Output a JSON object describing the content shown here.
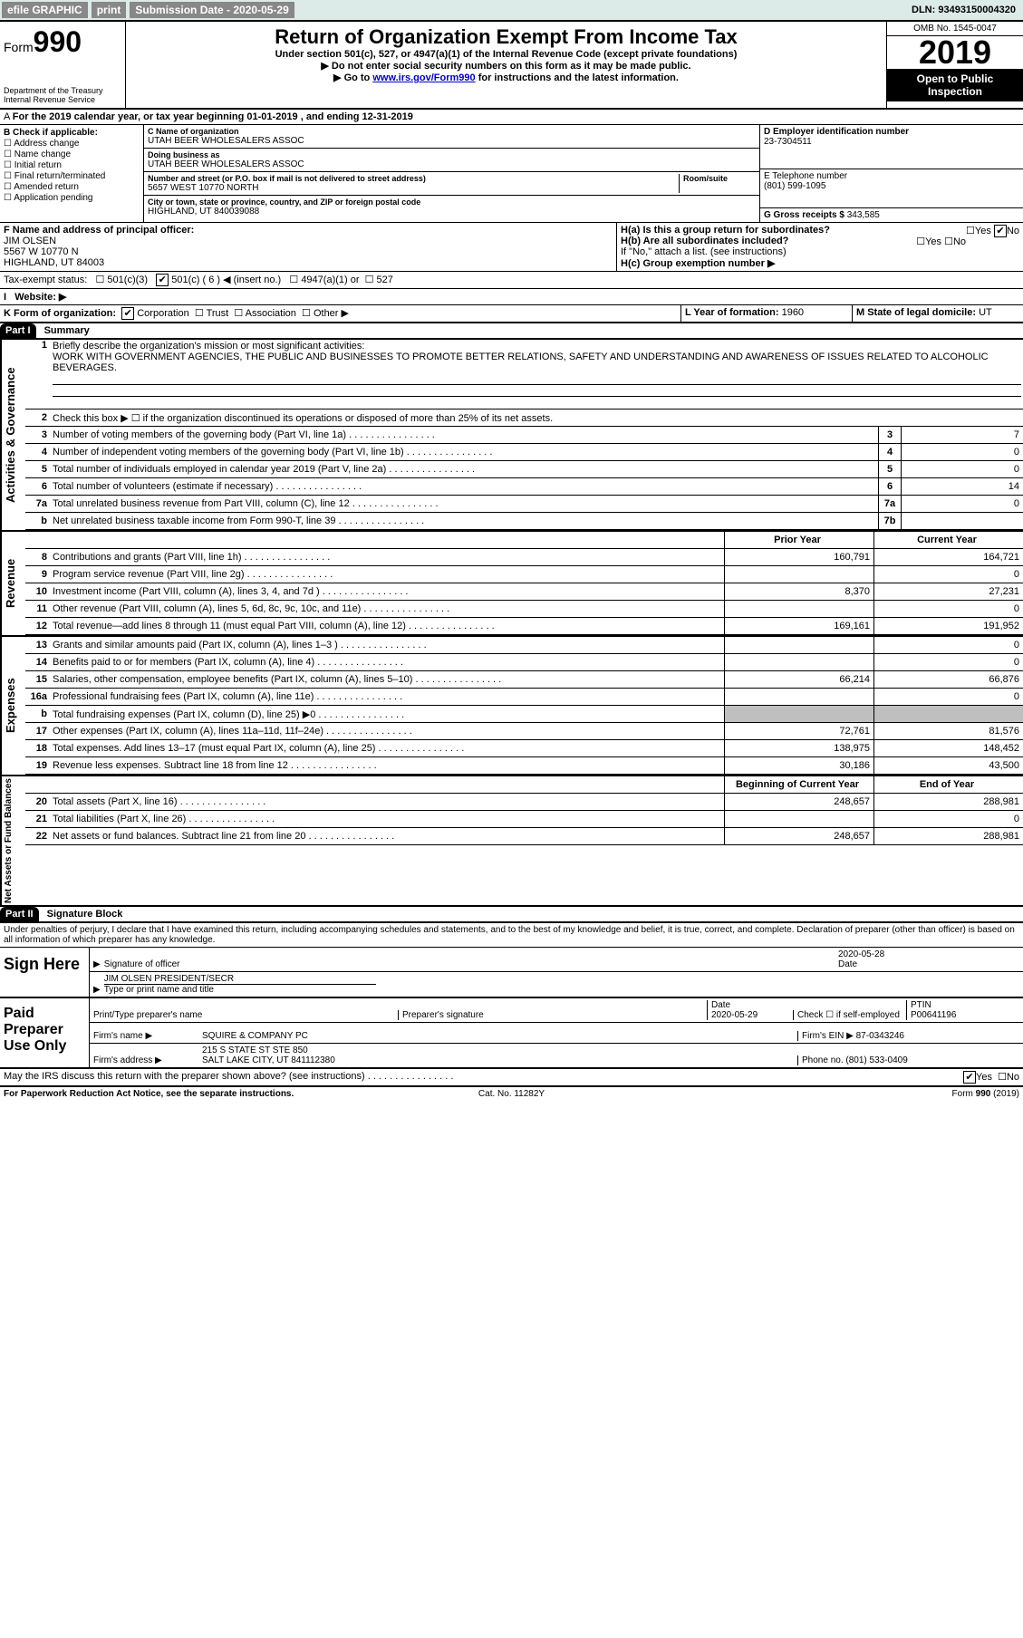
{
  "topbar": {
    "efile": "efile GRAPHIC",
    "print": "print",
    "subdate_label": "Submission Date - 2020-05-29",
    "dln_label": "DLN: 93493150004320"
  },
  "header": {
    "form_prefix": "Form",
    "form_num": "990",
    "dept": "Department of the Treasury",
    "irs": "Internal Revenue Service",
    "title": "Return of Organization Exempt From Income Tax",
    "sub1": "Under section 501(c), 527, or 4947(a)(1) of the Internal Revenue Code (except private foundations)",
    "sub2": "▶ Do not enter social security numbers on this form as it may be made public.",
    "sub3a": "▶ Go to ",
    "sub3_link": "www.irs.gov/Form990",
    "sub3b": " for instructions and the latest information.",
    "omb": "OMB No. 1545-0047",
    "year": "2019",
    "open": "Open to Public Inspection"
  },
  "periodA": "For the 2019 calendar year, or tax year beginning 01-01-2019   , and ending 12-31-2019",
  "sectionB": {
    "label": "B Check if applicable:",
    "opts": [
      "Address change",
      "Name change",
      "Initial return",
      "Final return/terminated",
      "Amended return",
      "Application pending"
    ]
  },
  "sectionC": {
    "name_label": "C Name of organization",
    "name": "UTAH BEER WHOLESALERS ASSOC",
    "dba_label": "Doing business as",
    "dba": "UTAH BEER WHOLESALERS ASSOC",
    "addr_label": "Number and street (or P.O. box if mail is not delivered to street address)",
    "room_label": "Room/suite",
    "addr": "5657 WEST 10770 NORTH",
    "city_label": "City or town, state or province, country, and ZIP or foreign postal code",
    "city": "HIGHLAND, UT  840039088"
  },
  "sectionD": {
    "label": "D Employer identification number",
    "val": "23-7304511"
  },
  "sectionE": {
    "label": "E Telephone number",
    "val": "(801) 599-1095"
  },
  "sectionG": {
    "label": "G Gross receipts $",
    "val": "343,585"
  },
  "sectionF": {
    "label": "F Name and address of principal officer:",
    "name": "JIM OLSEN",
    "addr1": "5567 W 10770 N",
    "addr2": "HIGHLAND, UT  84003"
  },
  "sectionH": {
    "a": "H(a)  Is this a group return for subordinates?",
    "b": "H(b)  Are all subordinates included?",
    "note": "If \"No,\" attach a list. (see instructions)",
    "c": "H(c)  Group exemption number ▶",
    "yes": "Yes",
    "no": "No"
  },
  "taxexempt": {
    "label": "Tax-exempt status:",
    "o1": "501(c)(3)",
    "o2": "501(c) ( 6 ) ◀ (insert no.)",
    "o3": "4947(a)(1) or",
    "o4": "527"
  },
  "sectionI": {
    "label": "I",
    "text": "Website: ▶"
  },
  "sectionJ": {
    "label": "J",
    "text": ""
  },
  "sectionK": {
    "label": "K Form of organization:",
    "opts": [
      "Corporation",
      "Trust",
      "Association",
      "Other ▶"
    ]
  },
  "sectionL": {
    "label": "L Year of formation:",
    "val": "1960"
  },
  "sectionM": {
    "label": "M State of legal domicile:",
    "val": "UT"
  },
  "part1": {
    "num": "Part I",
    "title": "Summary"
  },
  "summary": {
    "l1_label": "1",
    "l1_text": "Briefly describe the organization's mission or most significant activities:",
    "l1_val": "WORK WITH GOVERNMENT AGENCIES, THE PUBLIC AND BUSINESSES TO PROMOTE BETTER RELATIONS, SAFETY AND UNDERSTANDING AND AWARENESS OF ISSUES RELATED TO ALCOHOLIC BEVERAGES.",
    "l2_text": "Check this box ▶ ☐  if the organization discontinued its operations or disposed of more than 25% of its net assets.",
    "lines_ag": [
      {
        "n": "3",
        "t": "Number of voting members of the governing body (Part VI, line 1a)",
        "box": "3",
        "val": "7"
      },
      {
        "n": "4",
        "t": "Number of independent voting members of the governing body (Part VI, line 1b)",
        "box": "4",
        "val": "0"
      },
      {
        "n": "5",
        "t": "Total number of individuals employed in calendar year 2019 (Part V, line 2a)",
        "box": "5",
        "val": "0"
      },
      {
        "n": "6",
        "t": "Total number of volunteers (estimate if necessary)",
        "box": "6",
        "val": "14"
      },
      {
        "n": "7a",
        "t": "Total unrelated business revenue from Part VIII, column (C), line 12",
        "box": "7a",
        "val": "0"
      },
      {
        "n": "b",
        "t": "Net unrelated business taxable income from Form 990-T, line 39",
        "box": "7b",
        "val": ""
      }
    ],
    "hdr_py": "Prior Year",
    "hdr_cy": "Current Year",
    "rev_lines": [
      {
        "n": "8",
        "t": "Contributions and grants (Part VIII, line 1h)",
        "py": "160,791",
        "cy": "164,721"
      },
      {
        "n": "9",
        "t": "Program service revenue (Part VIII, line 2g)",
        "py": "",
        "cy": "0"
      },
      {
        "n": "10",
        "t": "Investment income (Part VIII, column (A), lines 3, 4, and 7d )",
        "py": "8,370",
        "cy": "27,231"
      },
      {
        "n": "11",
        "t": "Other revenue (Part VIII, column (A), lines 5, 6d, 8c, 9c, 10c, and 11e)",
        "py": "",
        "cy": "0"
      },
      {
        "n": "12",
        "t": "Total revenue—add lines 8 through 11 (must equal Part VIII, column (A), line 12)",
        "py": "169,161",
        "cy": "191,952"
      }
    ],
    "exp_lines": [
      {
        "n": "13",
        "t": "Grants and similar amounts paid (Part IX, column (A), lines 1–3 )",
        "py": "",
        "cy": "0"
      },
      {
        "n": "14",
        "t": "Benefits paid to or for members (Part IX, column (A), line 4)",
        "py": "",
        "cy": "0"
      },
      {
        "n": "15",
        "t": "Salaries, other compensation, employee benefits (Part IX, column (A), lines 5–10)",
        "py": "66,214",
        "cy": "66,876"
      },
      {
        "n": "16a",
        "t": "Professional fundraising fees (Part IX, column (A), line 11e)",
        "py": "",
        "cy": "0"
      },
      {
        "n": "b",
        "t": "Total fundraising expenses (Part IX, column (D), line 25) ▶0",
        "py": "GREY",
        "cy": "GREY"
      },
      {
        "n": "17",
        "t": "Other expenses (Part IX, column (A), lines 11a–11d, 11f–24e)",
        "py": "72,761",
        "cy": "81,576"
      },
      {
        "n": "18",
        "t": "Total expenses. Add lines 13–17 (must equal Part IX, column (A), line 25)",
        "py": "138,975",
        "cy": "148,452"
      },
      {
        "n": "19",
        "t": "Revenue less expenses. Subtract line 18 from line 12",
        "py": "30,186",
        "cy": "43,500"
      }
    ],
    "na_hdr_b": "Beginning of Current Year",
    "na_hdr_e": "End of Year",
    "na_lines": [
      {
        "n": "20",
        "t": "Total assets (Part X, line 16)",
        "py": "248,657",
        "cy": "288,981"
      },
      {
        "n": "21",
        "t": "Total liabilities (Part X, line 26)",
        "py": "",
        "cy": "0"
      },
      {
        "n": "22",
        "t": "Net assets or fund balances. Subtract line 21 from line 20",
        "py": "248,657",
        "cy": "288,981"
      }
    ]
  },
  "sidetabs": {
    "ag": "Activities & Governance",
    "rev": "Revenue",
    "exp": "Expenses",
    "na": "Net Assets or Fund Balances"
  },
  "part2": {
    "num": "Part II",
    "title": "Signature Block"
  },
  "part2text": "Under penalties of perjury, I declare that I have examined this return, including accompanying schedules and statements, and to the best of my knowledge and belief, it is true, correct, and complete. Declaration of preparer (other than officer) is based on all information of which preparer has any knowledge.",
  "sign": {
    "here": "Sign Here",
    "sig_officer": "Signature of officer",
    "date_label": "Date",
    "date": "2020-05-28",
    "name": "JIM OLSEN  PRESIDENT/SECR",
    "type_label": "Type or print name and title"
  },
  "paid": {
    "label": "Paid Preparer Use Only",
    "pt_name": "Print/Type preparer's name",
    "pt_sig": "Preparer's signature",
    "pt_date_label": "Date",
    "pt_date": "2020-05-29",
    "self_label": "Check ☐ if self-employed",
    "ptin_label": "PTIN",
    "ptin": "P00641196",
    "firm_name_label": "Firm's name    ▶",
    "firm_name": "SQUIRE & COMPANY PC",
    "firm_ein_label": "Firm's EIN ▶",
    "firm_ein": "87-0343246",
    "firm_addr_label": "Firm's address ▶",
    "firm_addr1": "215 S STATE ST STE 850",
    "firm_addr2": "SALT LAKE CITY, UT  841112380",
    "phone_label": "Phone no.",
    "phone": "(801) 533-0409"
  },
  "discuss": {
    "text": "May the IRS discuss this return with the preparer shown above? (see instructions)",
    "yes": "Yes",
    "no": "No"
  },
  "footer": {
    "l": "For Paperwork Reduction Act Notice, see the separate instructions.",
    "c": "Cat. No. 11282Y",
    "r": "Form 990 (2019)"
  }
}
